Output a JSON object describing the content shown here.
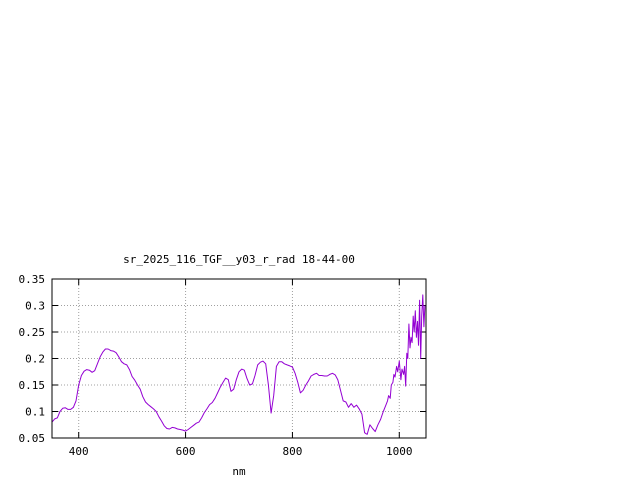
{
  "chart_data": {
    "type": "line",
    "title": "sr_2025_116_TGF__y03_r_rad 18-44-00",
    "xlabel": "nm",
    "ylabel": "",
    "xlim": [
      350,
      1050
    ],
    "ylim": [
      0.05,
      0.35
    ],
    "xticks": [
      400,
      600,
      800,
      1000
    ],
    "xtick_labels": [
      "400",
      "600",
      "800",
      "1000"
    ],
    "yticks": [
      0.05,
      0.1,
      0.15,
      0.2,
      0.25,
      0.3,
      0.35
    ],
    "ytick_labels": [
      "0.05",
      "0.1",
      "0.15",
      "0.2",
      "0.25",
      "0.3",
      "0.35"
    ],
    "grid": true,
    "line_color": "#9400d3",
    "series": [
      {
        "values": [
          [
            350,
            0.08
          ],
          [
            355,
            0.086
          ],
          [
            360,
            0.088
          ],
          [
            365,
            0.1
          ],
          [
            370,
            0.106
          ],
          [
            375,
            0.107
          ],
          [
            380,
            0.104
          ],
          [
            385,
            0.104
          ],
          [
            390,
            0.108
          ],
          [
            395,
            0.12
          ],
          [
            400,
            0.15
          ],
          [
            405,
            0.168
          ],
          [
            410,
            0.176
          ],
          [
            415,
            0.179
          ],
          [
            420,
            0.178
          ],
          [
            425,
            0.174
          ],
          [
            430,
            0.177
          ],
          [
            435,
            0.19
          ],
          [
            440,
            0.203
          ],
          [
            445,
            0.212
          ],
          [
            450,
            0.218
          ],
          [
            455,
            0.218
          ],
          [
            460,
            0.215
          ],
          [
            465,
            0.214
          ],
          [
            470,
            0.211
          ],
          [
            475,
            0.203
          ],
          [
            480,
            0.194
          ],
          [
            485,
            0.19
          ],
          [
            490,
            0.188
          ],
          [
            495,
            0.179
          ],
          [
            500,
            0.166
          ],
          [
            505,
            0.159
          ],
          [
            510,
            0.15
          ],
          [
            515,
            0.142
          ],
          [
            520,
            0.128
          ],
          [
            525,
            0.118
          ],
          [
            530,
            0.113
          ],
          [
            535,
            0.109
          ],
          [
            540,
            0.105
          ],
          [
            545,
            0.1
          ],
          [
            550,
            0.09
          ],
          [
            555,
            0.082
          ],
          [
            560,
            0.073
          ],
          [
            565,
            0.068
          ],
          [
            570,
            0.067
          ],
          [
            575,
            0.07
          ],
          [
            580,
            0.069
          ],
          [
            585,
            0.067
          ],
          [
            590,
            0.066
          ],
          [
            595,
            0.065
          ],
          [
            600,
            0.063
          ],
          [
            605,
            0.066
          ],
          [
            610,
            0.07
          ],
          [
            615,
            0.074
          ],
          [
            620,
            0.078
          ],
          [
            625,
            0.08
          ],
          [
            630,
            0.088
          ],
          [
            635,
            0.098
          ],
          [
            640,
            0.105
          ],
          [
            645,
            0.113
          ],
          [
            650,
            0.117
          ],
          [
            655,
            0.125
          ],
          [
            660,
            0.135
          ],
          [
            665,
            0.146
          ],
          [
            670,
            0.155
          ],
          [
            675,
            0.163
          ],
          [
            680,
            0.16
          ],
          [
            685,
            0.138
          ],
          [
            690,
            0.142
          ],
          [
            695,
            0.16
          ],
          [
            700,
            0.175
          ],
          [
            705,
            0.18
          ],
          [
            710,
            0.178
          ],
          [
            715,
            0.162
          ],
          [
            720,
            0.15
          ],
          [
            725,
            0.152
          ],
          [
            730,
            0.168
          ],
          [
            735,
            0.188
          ],
          [
            740,
            0.193
          ],
          [
            745,
            0.195
          ],
          [
            750,
            0.19
          ],
          [
            755,
            0.15
          ],
          [
            760,
            0.097
          ],
          [
            765,
            0.13
          ],
          [
            770,
            0.185
          ],
          [
            775,
            0.194
          ],
          [
            780,
            0.194
          ],
          [
            785,
            0.19
          ],
          [
            790,
            0.188
          ],
          [
            795,
            0.186
          ],
          [
            800,
            0.184
          ],
          [
            805,
            0.172
          ],
          [
            810,
            0.155
          ],
          [
            815,
            0.135
          ],
          [
            820,
            0.14
          ],
          [
            825,
            0.15
          ],
          [
            830,
            0.158
          ],
          [
            835,
            0.167
          ],
          [
            840,
            0.17
          ],
          [
            845,
            0.172
          ],
          [
            850,
            0.168
          ],
          [
            855,
            0.168
          ],
          [
            860,
            0.167
          ],
          [
            865,
            0.167
          ],
          [
            870,
            0.17
          ],
          [
            875,
            0.172
          ],
          [
            880,
            0.169
          ],
          [
            885,
            0.16
          ],
          [
            890,
            0.14
          ],
          [
            895,
            0.12
          ],
          [
            900,
            0.118
          ],
          [
            905,
            0.108
          ],
          [
            910,
            0.115
          ],
          [
            915,
            0.108
          ],
          [
            920,
            0.112
          ],
          [
            925,
            0.105
          ],
          [
            930,
            0.095
          ],
          [
            935,
            0.06
          ],
          [
            938,
            0.058
          ],
          [
            940,
            0.057
          ],
          [
            945,
            0.075
          ],
          [
            950,
            0.068
          ],
          [
            955,
            0.062
          ],
          [
            960,
            0.075
          ],
          [
            965,
            0.085
          ],
          [
            970,
            0.1
          ],
          [
            975,
            0.112
          ],
          [
            978,
            0.12
          ],
          [
            980,
            0.13
          ],
          [
            983,
            0.125
          ],
          [
            985,
            0.15
          ],
          [
            988,
            0.155
          ],
          [
            990,
            0.17
          ],
          [
            992,
            0.165
          ],
          [
            995,
            0.185
          ],
          [
            997,
            0.175
          ],
          [
            1000,
            0.195
          ],
          [
            1003,
            0.16
          ],
          [
            1005,
            0.18
          ],
          [
            1008,
            0.17
          ],
          [
            1010,
            0.185
          ],
          [
            1012,
            0.148
          ],
          [
            1014,
            0.21
          ],
          [
            1016,
            0.2
          ],
          [
            1018,
            0.265
          ],
          [
            1020,
            0.22
          ],
          [
            1022,
            0.24
          ],
          [
            1024,
            0.23
          ],
          [
            1026,
            0.28
          ],
          [
            1028,
            0.25
          ],
          [
            1030,
            0.29
          ],
          [
            1032,
            0.24
          ],
          [
            1034,
            0.27
          ],
          [
            1036,
            0.225
          ],
          [
            1038,
            0.31
          ],
          [
            1040,
            0.2
          ],
          [
            1042,
            0.28
          ],
          [
            1044,
            0.32
          ],
          [
            1046,
            0.26
          ],
          [
            1048,
            0.3
          ]
        ]
      }
    ]
  }
}
